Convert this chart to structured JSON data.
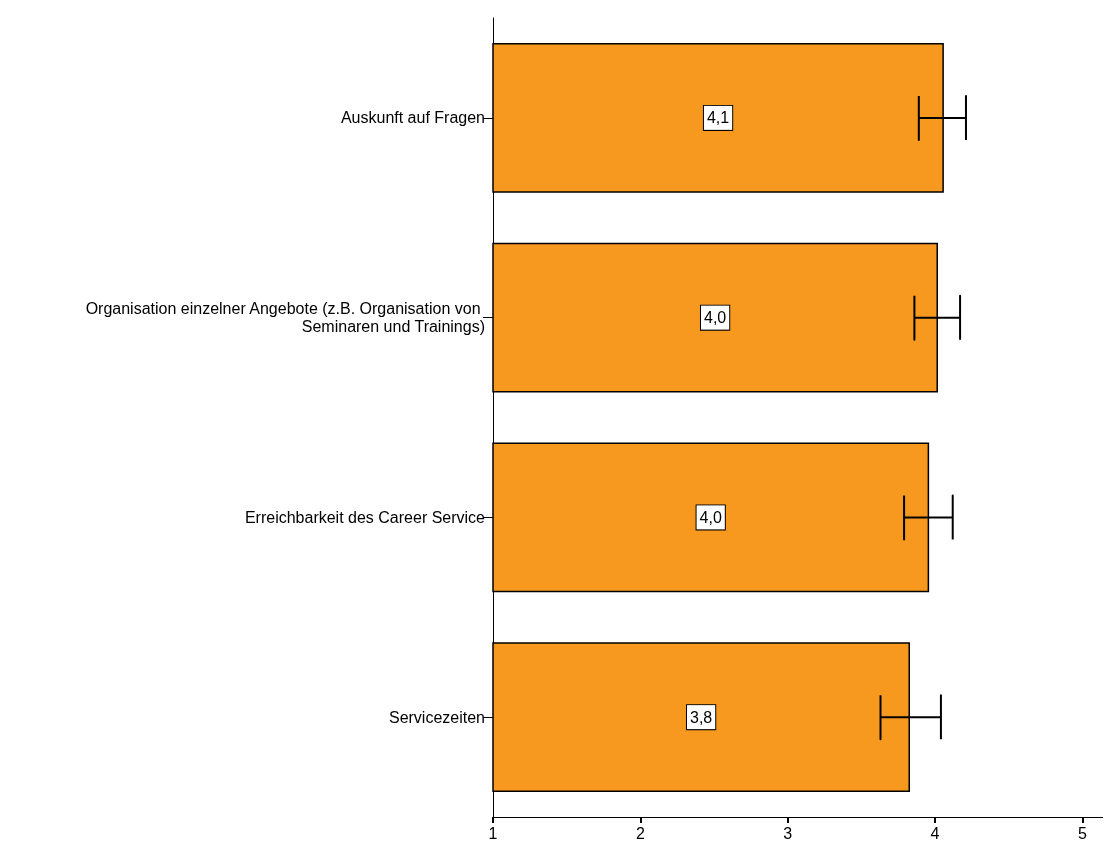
{
  "chart_data": {
    "type": "bar",
    "orientation": "horizontal",
    "categories": [
      "Auskunft auf Fragen",
      "Organisation einzelner Angebote (z.B. Organisation von Seminaren und Trainings)",
      "Erreichbarkeit des Career Service",
      "Servicezeiten"
    ],
    "values": [
      4.06,
      4.02,
      3.96,
      3.83
    ],
    "value_labels": [
      "4,1",
      "4,0",
      "4,0",
      "3,8"
    ],
    "errors": [
      [
        3.89,
        4.21
      ],
      [
        3.86,
        4.17
      ],
      [
        3.79,
        4.12
      ],
      [
        3.63,
        4.04
      ]
    ],
    "color": "#f7991f",
    "xlim": [
      1,
      5.14
    ],
    "xticks": [
      1,
      2,
      3,
      4,
      5
    ],
    "grid": false
  }
}
